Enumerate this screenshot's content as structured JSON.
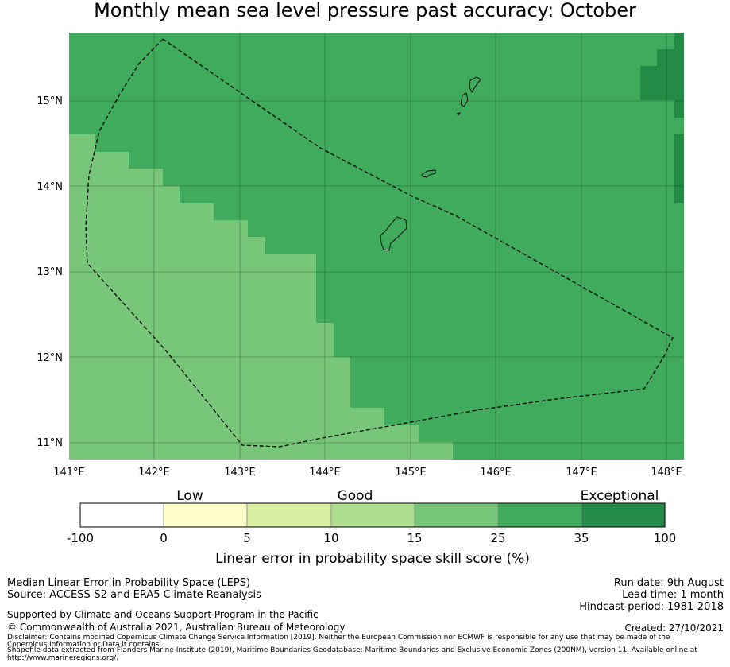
{
  "title": "Monthly mean sea level pressure past accuracy: October",
  "map": {
    "lat_labels": [
      "15°N",
      "14°N",
      "13°N",
      "12°N",
      "11°N"
    ],
    "lon_labels": [
      "141°E",
      "142°E",
      "143°E",
      "144°E",
      "145°E",
      "146°E",
      "147°E",
      "148°E"
    ],
    "colors": {
      "exceptional": "#238b45",
      "high_good": "#41ab5d",
      "mid_good": "#78c679",
      "border": "#000000"
    }
  },
  "colorbar": {
    "title": "Linear error in probability space skill score (%)",
    "categories": [
      "Low",
      "Good",
      "Exceptional"
    ],
    "ticks": [
      "-100",
      "0",
      "5",
      "10",
      "15",
      "25",
      "35",
      "100"
    ],
    "colors": [
      "#ffffff",
      "#ffffcc",
      "#d9f0a3",
      "#addd8e",
      "#78c679",
      "#41ab5d",
      "#238b45"
    ]
  },
  "footer": {
    "left": [
      "Median Linear Error in Probability Space (LEPS)",
      "Source: ACCESS-S2 and ERA5 Climate Reanalysis"
    ],
    "support": "Supported by Climate and Oceans Support Program in the Pacific",
    "copyright": "© Commonwealth of Australia 2021, Australian Bureau of Meteorology",
    "disclaimer1": "Disclaimer: Contains modified Copernicus Climate Change Service Information [2019]. Neither the European Commission nor ECMWF is responsible for any use that may be made of the",
    "disclaimer2": "Copernicus Information or Data it contains.",
    "shapefile1": "Shapefile data extracted from Flanders Marine Institute (2019), Maritime Boundaries Geodatabase: Maritime Boundaries and Exclusive Economic Zones (200NM), version 11. Available online at",
    "shapefile2": "http://www.marineregions.org/.",
    "right": [
      "Run date: 9th August",
      "Lead time: 1 month",
      "Hindcast period: 1981-2018"
    ],
    "created": "Created: 27/10/2021"
  }
}
